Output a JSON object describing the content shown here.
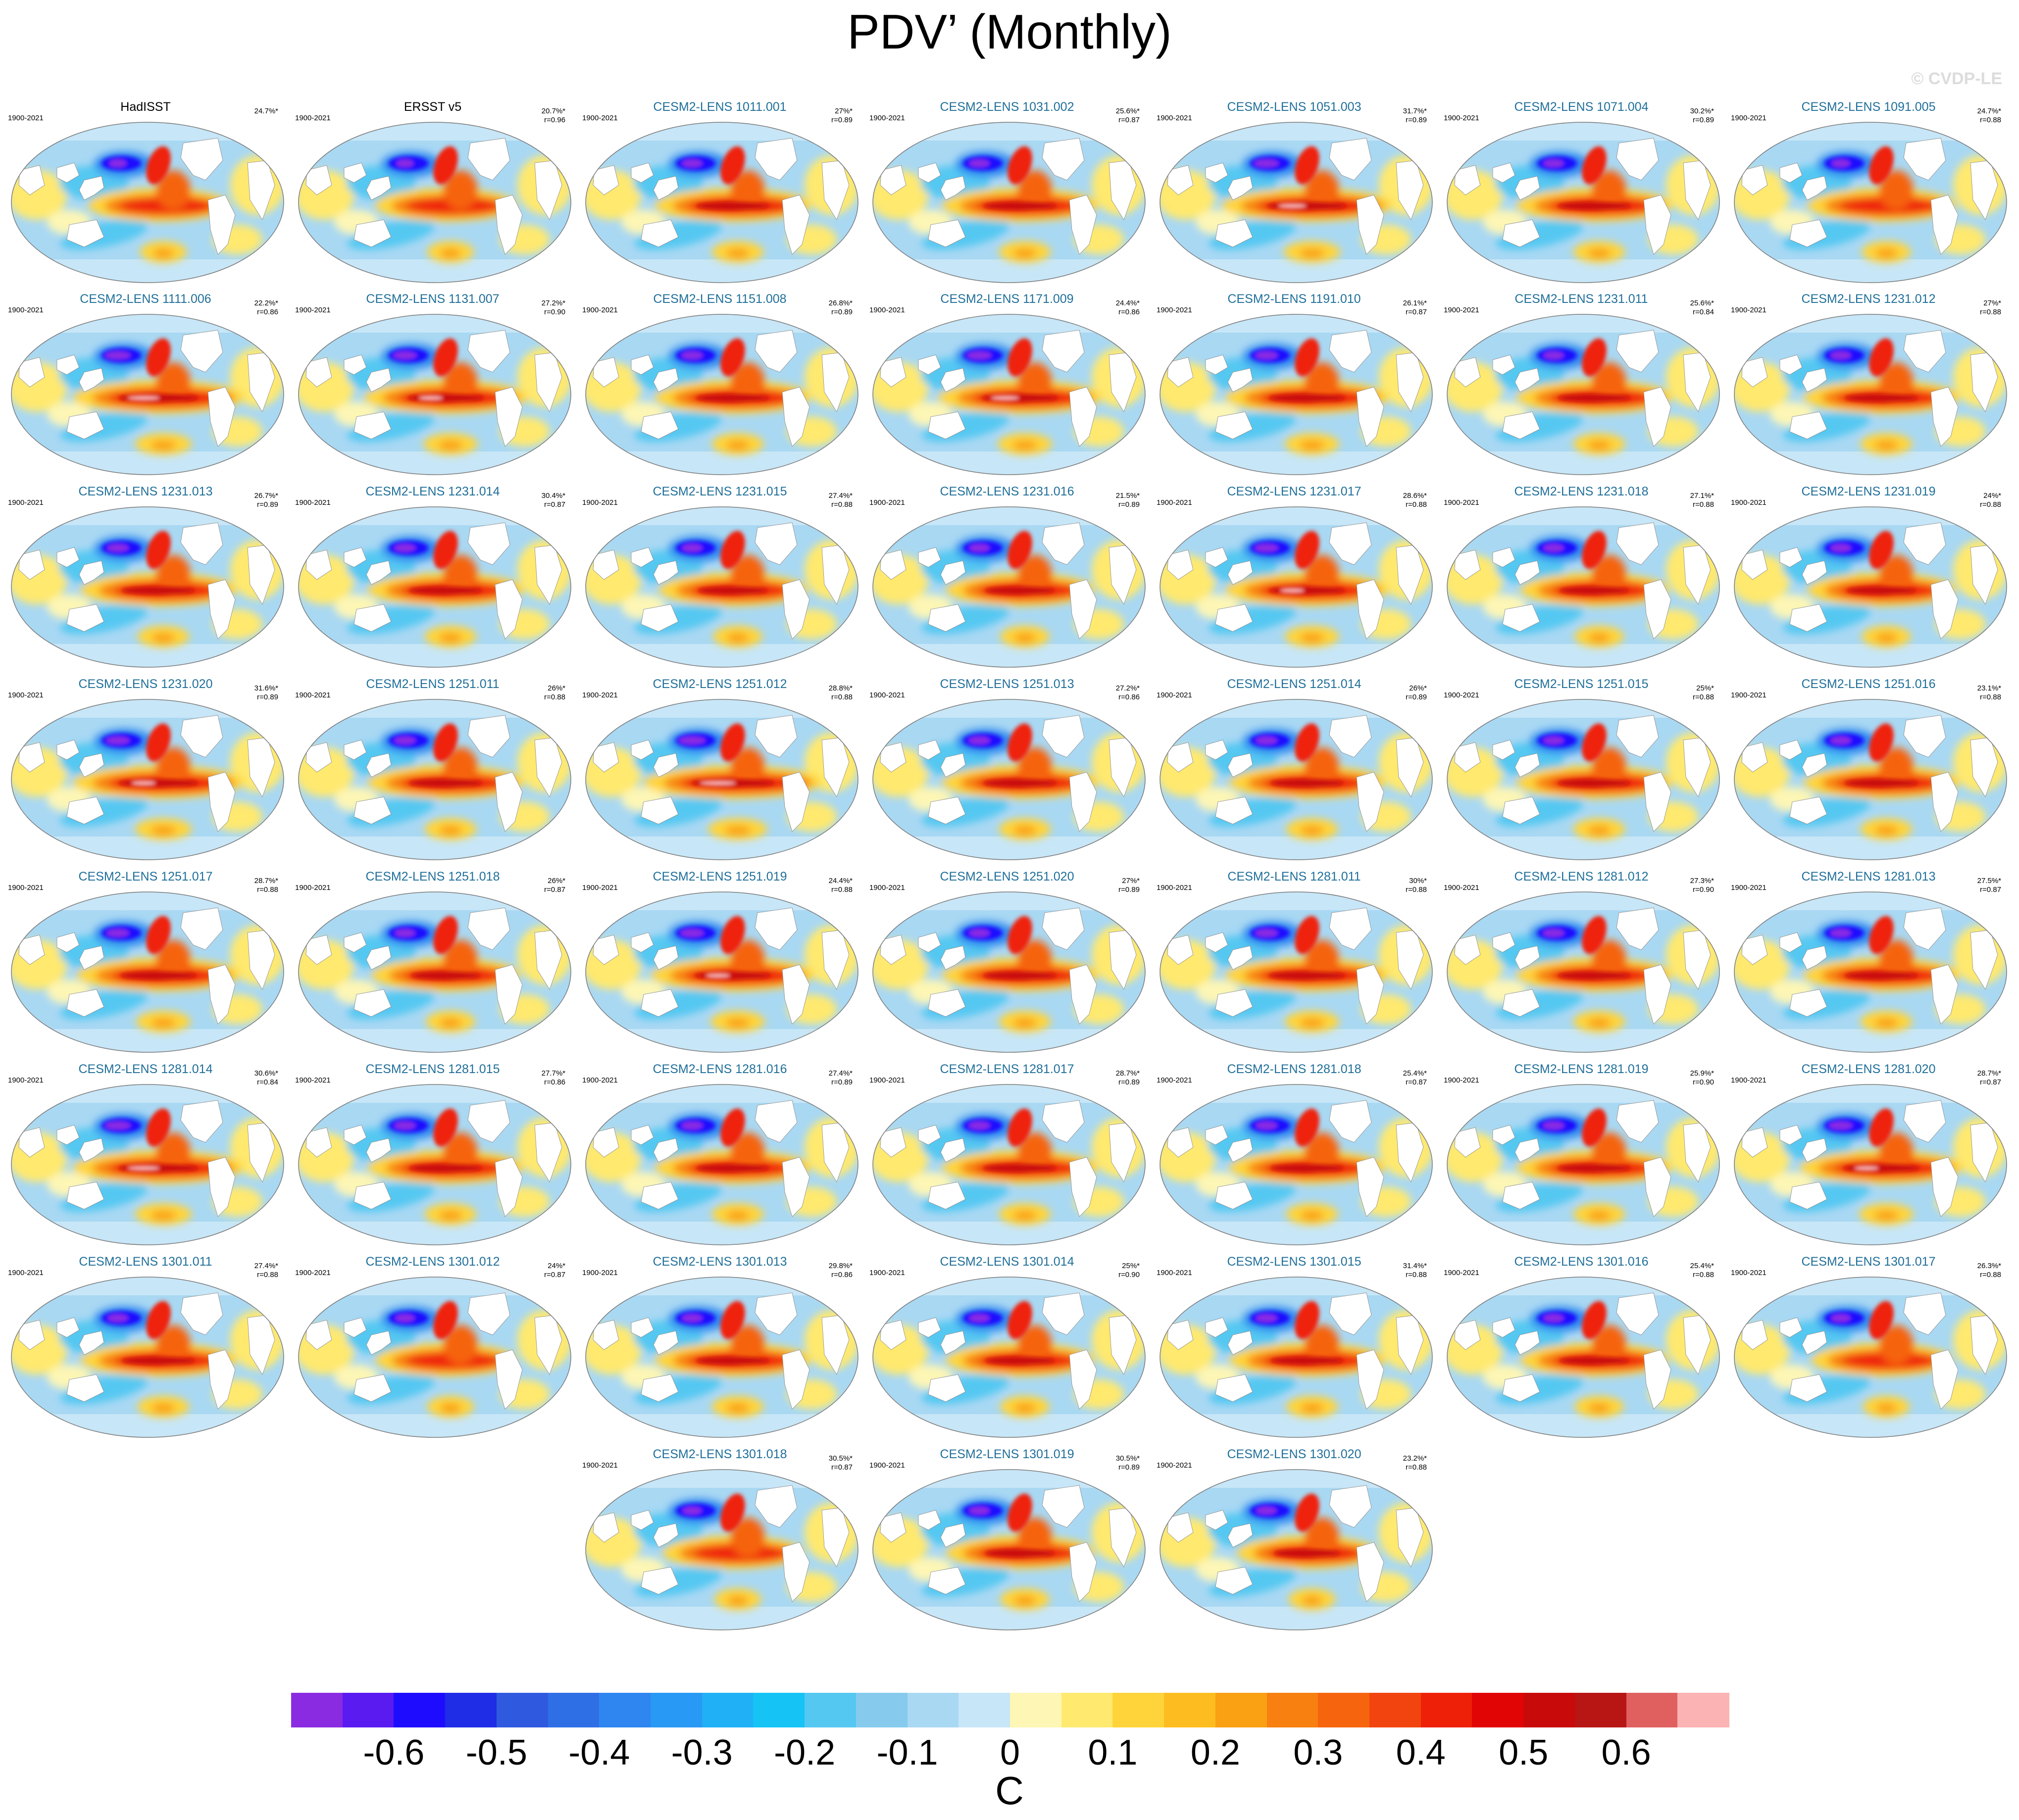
{
  "title": "PDV’ (Monthly)",
  "watermark": "© CVDP-LE",
  "year_range": "1900-2021",
  "panels": [
    {
      "name": "HadISST",
      "pct": "24.7%*",
      "r": "",
      "obs": true,
      "g": 0,
      "warm": 0.95,
      "ext": 0.0
    },
    {
      "name": "ERSST v5",
      "pct": "20.7%*",
      "r": "r=0.96",
      "obs": true,
      "g": 0,
      "warm": 0.95,
      "ext": 0.0
    },
    {
      "name": "CESM2-LENS 1011.001",
      "pct": "27%*",
      "r": "r=0.89",
      "g": 1,
      "warm": 1.05,
      "ext": 0.3
    },
    {
      "name": "CESM2-LENS 1031.002",
      "pct": "25.6%*",
      "r": "r=0.87",
      "g": 1,
      "warm": 1.05,
      "ext": 0.3
    },
    {
      "name": "CESM2-LENS 1051.003",
      "pct": "31.7%*",
      "r": "r=0.89",
      "g": 2,
      "warm": 1.15,
      "ext": 0.7
    },
    {
      "name": "CESM2-LENS 1071.004",
      "pct": "30.2%*",
      "r": "r=0.89",
      "g": 1,
      "warm": 1.05,
      "ext": 0.3
    },
    {
      "name": "CESM2-LENS 1091.005",
      "pct": "24.7%*",
      "r": "r=0.88",
      "g": 0,
      "warm": 1.0,
      "ext": 0.1
    },
    {
      "name": "CESM2-LENS 1111.006",
      "pct": "22.2%*",
      "r": "r=0.86",
      "g": 2,
      "warm": 1.15,
      "ext": 0.8
    },
    {
      "name": "CESM2-LENS 1131.007",
      "pct": "27.2%*",
      "r": "r=0.90",
      "g": 2,
      "warm": 1.1,
      "ext": 0.6
    },
    {
      "name": "CESM2-LENS 1151.008",
      "pct": "26.8%*",
      "r": "r=0.89",
      "g": 1,
      "warm": 1.05,
      "ext": 0.4
    },
    {
      "name": "CESM2-LENS 1171.009",
      "pct": "24.4%*",
      "r": "r=0.86",
      "g": 2,
      "warm": 1.1,
      "ext": 0.7
    },
    {
      "name": "CESM2-LENS 1191.010",
      "pct": "26.1%*",
      "r": "r=0.87",
      "g": 1,
      "warm": 1.1,
      "ext": 0.5
    },
    {
      "name": "CESM2-LENS 1231.011",
      "pct": "25.6%*",
      "r": "r=0.84",
      "g": 0,
      "warm": 1.05,
      "ext": 0.3
    },
    {
      "name": "CESM2-LENS 1231.012",
      "pct": "27%*",
      "r": "r=0.88",
      "g": 0,
      "warm": 1.05,
      "ext": 0.3
    },
    {
      "name": "CESM2-LENS 1231.013",
      "pct": "26.7%*",
      "r": "r=0.89",
      "g": 2,
      "warm": 1.05,
      "ext": 0.4
    },
    {
      "name": "CESM2-LENS 1231.014",
      "pct": "30.4%*",
      "r": "r=0.87",
      "g": 2,
      "warm": 1.05,
      "ext": 0.4
    },
    {
      "name": "CESM2-LENS 1231.015",
      "pct": "27.4%*",
      "r": "r=0.88",
      "g": 1,
      "warm": 1.0,
      "ext": 0.3
    },
    {
      "name": "CESM2-LENS 1231.016",
      "pct": "21.5%*",
      "r": "r=0.89",
      "g": 1,
      "warm": 1.0,
      "ext": 0.3
    },
    {
      "name": "CESM2-LENS 1231.017",
      "pct": "28.6%*",
      "r": "r=0.88",
      "g": 2,
      "warm": 1.1,
      "ext": 0.6
    },
    {
      "name": "CESM2-LENS 1231.018",
      "pct": "27.1%*",
      "r": "r=0.88",
      "g": 1,
      "warm": 1.0,
      "ext": 0.3
    },
    {
      "name": "CESM2-LENS 1231.019",
      "pct": "24%*",
      "r": "r=0.88",
      "g": 0,
      "warm": 1.0,
      "ext": 0.3
    },
    {
      "name": "CESM2-LENS 1231.020",
      "pct": "31.6%*",
      "r": "r=0.89",
      "g": 2,
      "warm": 1.15,
      "ext": 0.6
    },
    {
      "name": "CESM2-LENS 1251.011",
      "pct": "26%*",
      "r": "r=0.88",
      "g": 2,
      "warm": 1.05,
      "ext": 0.4
    },
    {
      "name": "CESM2-LENS 1251.012",
      "pct": "28.8%*",
      "r": "r=0.88",
      "g": 2,
      "warm": 1.2,
      "ext": 0.9
    },
    {
      "name": "CESM2-LENS 1251.013",
      "pct": "27.2%*",
      "r": "r=0.86",
      "g": 1,
      "warm": 1.05,
      "ext": 0.4
    },
    {
      "name": "CESM2-LENS 1251.014",
      "pct": "26%*",
      "r": "r=0.89",
      "g": 1,
      "warm": 1.05,
      "ext": 0.4
    },
    {
      "name": "CESM2-LENS 1251.015",
      "pct": "25%*",
      "r": "r=0.88",
      "g": 1,
      "warm": 1.05,
      "ext": 0.3
    },
    {
      "name": "CESM2-LENS 1251.016",
      "pct": "23.1%*",
      "r": "r=0.88",
      "g": 1,
      "warm": 1.05,
      "ext": 0.3
    },
    {
      "name": "CESM2-LENS 1251.017",
      "pct": "28.7%*",
      "r": "r=0.88",
      "g": 2,
      "warm": 1.1,
      "ext": 0.5
    },
    {
      "name": "CESM2-LENS 1251.018",
      "pct": "26%*",
      "r": "r=0.87",
      "g": 0,
      "warm": 1.0,
      "ext": 0.3
    },
    {
      "name": "CESM2-LENS 1251.019",
      "pct": "24.4%*",
      "r": "r=0.88",
      "g": 1,
      "warm": 1.1,
      "ext": 0.6
    },
    {
      "name": "CESM2-LENS 1251.020",
      "pct": "27%*",
      "r": "r=0.89",
      "g": 1,
      "warm": 1.05,
      "ext": 0.3
    },
    {
      "name": "CESM2-LENS 1281.011",
      "pct": "30%*",
      "r": "r=0.88",
      "g": 2,
      "warm": 1.1,
      "ext": 0.5
    },
    {
      "name": "CESM2-LENS 1281.012",
      "pct": "27.3%*",
      "r": "r=0.90",
      "g": 1,
      "warm": 1.05,
      "ext": 0.4
    },
    {
      "name": "CESM2-LENS 1281.013",
      "pct": "27.5%*",
      "r": "r=0.87",
      "g": 1,
      "warm": 1.05,
      "ext": 0.3
    },
    {
      "name": "CESM2-LENS 1281.014",
      "pct": "30.6%*",
      "r": "r=0.84",
      "g": 2,
      "warm": 1.15,
      "ext": 0.8
    },
    {
      "name": "CESM2-LENS 1281.015",
      "pct": "27.7%*",
      "r": "r=0.86",
      "g": 1,
      "warm": 1.05,
      "ext": 0.4
    },
    {
      "name": "CESM2-LENS 1281.016",
      "pct": "27.4%*",
      "r": "r=0.89",
      "g": 1,
      "warm": 1.05,
      "ext": 0.4
    },
    {
      "name": "CESM2-LENS 1281.017",
      "pct": "28.7%*",
      "r": "r=0.89",
      "g": 1,
      "warm": 1.05,
      "ext": 0.4
    },
    {
      "name": "CESM2-LENS 1281.018",
      "pct": "25.4%*",
      "r": "r=0.87",
      "g": 2,
      "warm": 1.05,
      "ext": 0.4
    },
    {
      "name": "CESM2-LENS 1281.019",
      "pct": "25.9%*",
      "r": "r=0.90",
      "g": 2,
      "warm": 1.05,
      "ext": 0.4
    },
    {
      "name": "CESM2-LENS 1281.020",
      "pct": "28.7%*",
      "r": "r=0.87",
      "g": 2,
      "warm": 1.1,
      "ext": 0.6
    },
    {
      "name": "CESM2-LENS 1301.011",
      "pct": "27.4%*",
      "r": "r=0.88",
      "g": 1,
      "warm": 1.05,
      "ext": 0.3
    },
    {
      "name": "CESM2-LENS 1301.012",
      "pct": "24%*",
      "r": "r=0.87",
      "g": 0,
      "warm": 0.95,
      "ext": 0.2
    },
    {
      "name": "CESM2-LENS 1301.013",
      "pct": "29.8%*",
      "r": "r=0.86",
      "g": 1,
      "warm": 1.05,
      "ext": 0.3
    },
    {
      "name": "CESM2-LENS 1301.014",
      "pct": "25%*",
      "r": "r=0.90",
      "g": 1,
      "warm": 1.0,
      "ext": 0.3
    },
    {
      "name": "CESM2-LENS 1301.015",
      "pct": "31.4%*",
      "r": "r=0.88",
      "g": 1,
      "warm": 1.05,
      "ext": 0.4
    },
    {
      "name": "CESM2-LENS 1301.016",
      "pct": "25.4%*",
      "r": "r=0.88",
      "g": 1,
      "warm": 1.0,
      "ext": 0.3
    },
    {
      "name": "CESM2-LENS 1301.017",
      "pct": "26.3%*",
      "r": "r=0.88",
      "g": 0,
      "warm": 0.95,
      "ext": 0.2
    },
    {
      "name": "CESM2-LENS 1301.018",
      "pct": "30.5%*",
      "r": "r=0.87",
      "g": 0,
      "warm": 0.95,
      "ext": 0.2
    },
    {
      "name": "CESM2-LENS 1301.019",
      "pct": "30.5%*",
      "r": "r=0.89",
      "g": 1,
      "warm": 1.0,
      "ext": 0.3
    },
    {
      "name": "CESM2-LENS 1301.020",
      "pct": "23.2%*",
      "r": "r=0.88",
      "g": 1,
      "warm": 0.95,
      "ext": 0.3
    }
  ],
  "colorbar": {
    "units": "C",
    "colors": [
      "#8a2be2",
      "#5a1bf0",
      "#1e0cff",
      "#1f2de6",
      "#2f5ae0",
      "#2f6fe6",
      "#2f86f0",
      "#2899f5",
      "#1fb0f5",
      "#16c3f5",
      "#55c8f2",
      "#86cbed",
      "#a9d8f3",
      "#c7e6f7",
      "#fdf6b5",
      "#ffe96e",
      "#ffd43b",
      "#fdbd21",
      "#f9a013",
      "#f78010",
      "#f6640e",
      "#f1440e",
      "#ef2008",
      "#e10505",
      "#c90a0a",
      "#b81515",
      "#e06060",
      "#fbb3b3"
    ],
    "ticks": [
      "-0.6",
      "-0.5",
      "-0.4",
      "-0.3",
      "-0.2",
      "-0.1",
      "0",
      "0.1",
      "0.2",
      "0.3",
      "0.4",
      "0.5",
      "0.6"
    ],
    "tick_values": [
      -0.6,
      -0.5,
      -0.4,
      -0.3,
      -0.2,
      -0.1,
      0,
      0.1,
      0.2,
      0.3,
      0.4,
      0.5,
      0.6
    ]
  }
}
